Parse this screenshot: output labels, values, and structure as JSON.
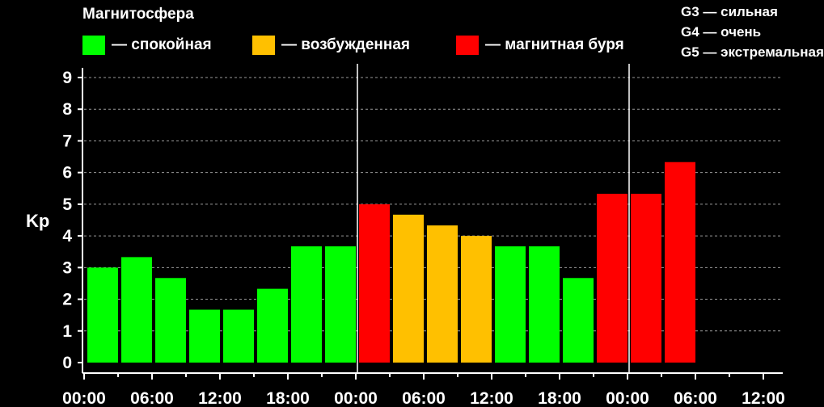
{
  "chart_data": {
    "type": "bar",
    "title": "Магнитосфера",
    "ylabel": "Kp",
    "xlabel": "",
    "ylim": [
      0,
      9
    ],
    "y_ticks": [
      0,
      1,
      2,
      3,
      4,
      5,
      6,
      7,
      8,
      9
    ],
    "x_tick_labels": [
      "00:00",
      "06:00",
      "12:00",
      "18:00",
      "00:00",
      "06:00",
      "12:00",
      "18:00",
      "00:00",
      "06:00",
      "12:00"
    ],
    "day_separators_after_bar": [
      8,
      16
    ],
    "grid": true,
    "legend": [
      {
        "label": "— спокойная",
        "color": "#00ff00"
      },
      {
        "label": "— возбужденная",
        "color": "#ffc000"
      },
      {
        "label": "— магнитная буря",
        "color": "#ff0000"
      }
    ],
    "g_scale": [
      "G3 — сильная",
      "G4 — очень",
      "G5 — экстремальная"
    ],
    "values": [
      3.0,
      3.33,
      2.67,
      1.67,
      1.67,
      2.33,
      3.67,
      3.67,
      5.0,
      4.67,
      4.33,
      4.0,
      3.67,
      3.67,
      2.67,
      5.33,
      5.33,
      6.33
    ],
    "bar_colors": [
      "#00ff00",
      "#00ff00",
      "#00ff00",
      "#00ff00",
      "#00ff00",
      "#00ff00",
      "#00ff00",
      "#00ff00",
      "#ff0000",
      "#ffc000",
      "#ffc000",
      "#ffc000",
      "#00ff00",
      "#00ff00",
      "#00ff00",
      "#ff0000",
      "#ff0000",
      "#ff0000"
    ]
  }
}
